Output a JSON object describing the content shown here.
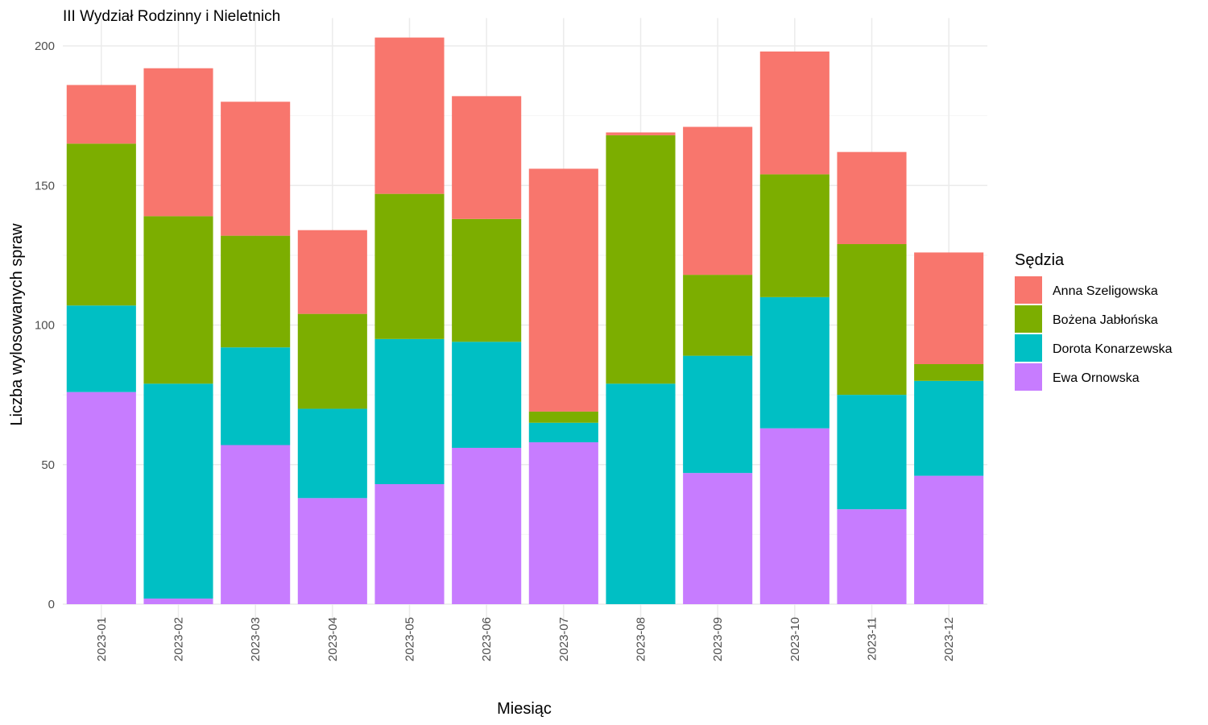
{
  "chart_data": {
    "type": "bar",
    "stacked": true,
    "subtitle": "III Wydział Rodzinny i Nieletnich",
    "xlabel": "Miesiąc",
    "ylabel": "Liczba wylosowanych spraw",
    "ylim": [
      0,
      210
    ],
    "y_ticks": [
      0,
      50,
      100,
      150,
      200
    ],
    "grid": true,
    "legend": {
      "title": "Sędzia",
      "position": "right"
    },
    "categories": [
      "2023-01",
      "2023-02",
      "2023-03",
      "2023-04",
      "2023-05",
      "2023-06",
      "2023-07",
      "2023-08",
      "2023-09",
      "2023-10",
      "2023-11",
      "2023-12"
    ],
    "series": [
      {
        "name": "Ewa Ornowska",
        "color": "#C77CFF",
        "values": [
          76,
          2,
          57,
          38,
          43,
          56,
          58,
          0,
          47,
          63,
          34,
          46
        ]
      },
      {
        "name": "Dorota Konarzewska",
        "color": "#00BFC4",
        "values": [
          31,
          77,
          35,
          32,
          52,
          38,
          7,
          79,
          42,
          47,
          41,
          34
        ]
      },
      {
        "name": "Bożena Jabłońska",
        "color": "#7CAE00",
        "values": [
          58,
          60,
          40,
          34,
          52,
          44,
          4,
          89,
          29,
          44,
          54,
          6
        ]
      },
      {
        "name": "Anna Szeligowska",
        "color": "#F8766D",
        "values": [
          21,
          53,
          48,
          30,
          56,
          44,
          87,
          1,
          53,
          44,
          33,
          40
        ]
      }
    ],
    "legend_order": [
      "Anna Szeligowska",
      "Bożena Jabłońska",
      "Dorota Konarzewska",
      "Ewa Ornowska"
    ]
  }
}
